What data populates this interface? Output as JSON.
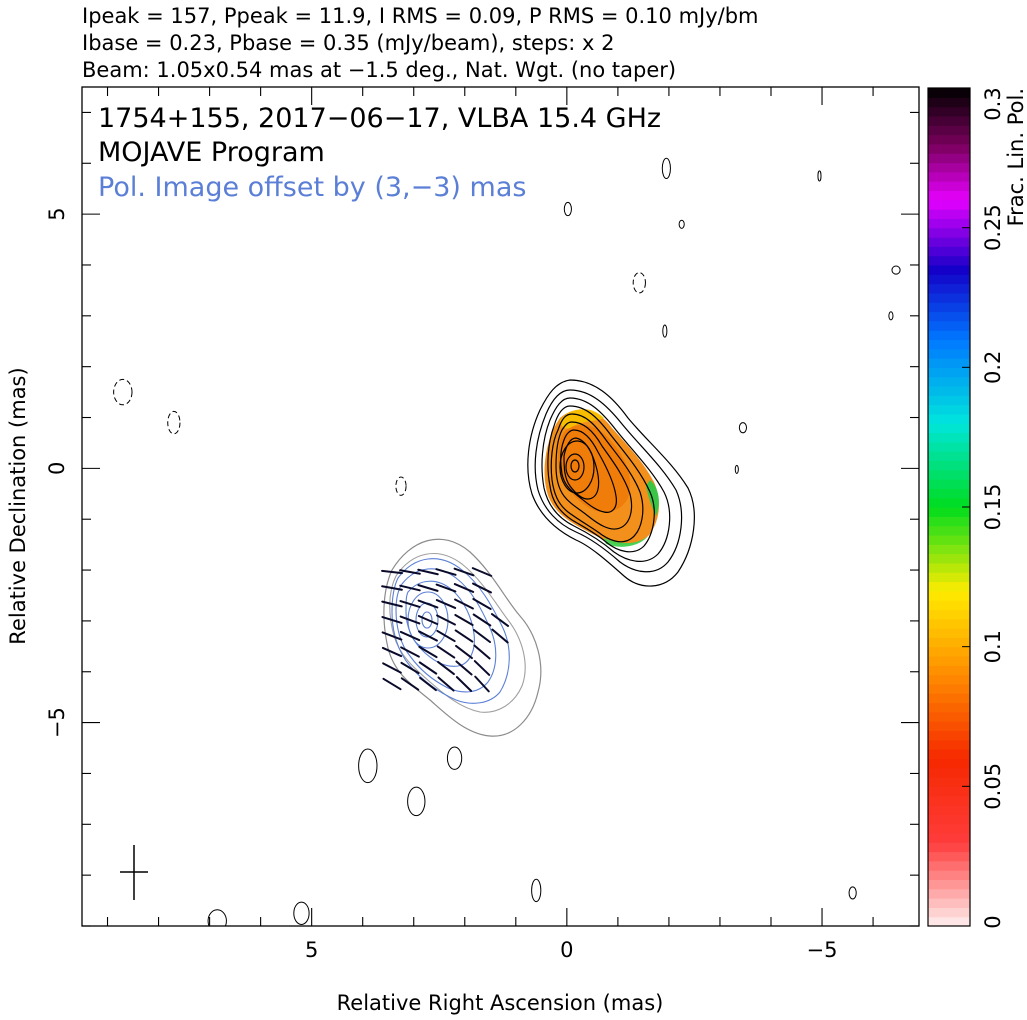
{
  "chart_data": {
    "type": "contour",
    "header_lines": [
      "Ipeak = 157, Ppeak = 11.9, I RMS = 0.09, P RMS = 0.10 mJy/bm",
      "Ibase = 0.23, Pbase = 0.35 (mJy/beam), steps: x 2",
      "Beam: 1.05x0.54 mas at −1.5 deg., Nat. Wgt. (no taper)"
    ],
    "inset_lines": [
      "1754+155, 2017−06−17, VLBA 15.4 GHz",
      "MOJAVE Program",
      "Pol. Image offset by (3,−3) mas"
    ],
    "inset_offset_color": "#5b7fd6",
    "xlabel": "Relative Right Ascension (mas)",
    "ylabel": "Relative Declination (mas)",
    "xlim": [
      9.5,
      -6.9
    ],
    "ylim": [
      -9.0,
      7.5
    ],
    "x_ticks": [
      {
        "v": 5,
        "label": "5"
      },
      {
        "v": 0,
        "label": "0"
      },
      {
        "v": -5,
        "label": "−5"
      }
    ],
    "y_ticks": [
      {
        "v": 5,
        "label": "5"
      },
      {
        "v": 0,
        "label": "0"
      },
      {
        "v": -5,
        "label": "−5"
      }
    ],
    "colorbar": {
      "label": "Frac. Lin. Pol.",
      "range": [
        0,
        0.3
      ],
      "ticks": [
        {
          "v": 0,
          "label": "0"
        },
        {
          "v": 0.05,
          "label": "0.05"
        },
        {
          "v": 0.1,
          "label": "0.1"
        },
        {
          "v": 0.15,
          "label": "0.15"
        },
        {
          "v": 0.2,
          "label": "0.2"
        },
        {
          "v": 0.25,
          "label": "0.25"
        },
        {
          "v": 0.3,
          "label": "0.3"
        }
      ]
    },
    "stokes_i_core": {
      "center": [
        0.0,
        0.0
      ],
      "contour_levels_mJy": [
        0.23,
        0.46,
        0.92,
        1.84,
        3.68,
        7.36,
        14.72,
        29.44,
        58.88,
        117.76
      ]
    },
    "beam": {
      "major_mas": 1.05,
      "minor_mas": 0.54,
      "pa_deg": -1.5,
      "center": [
        8.55,
        -7.9
      ]
    },
    "pol_offset_mas": [
      3,
      -3
    ],
    "frac_pol_samples": [
      {
        "x": 0.0,
        "y": 0.0,
        "v": 0.07
      },
      {
        "x": -0.6,
        "y": -0.5,
        "v": 0.08
      },
      {
        "x": -1.5,
        "y": -0.6,
        "v": 0.16
      },
      {
        "x": -1.0,
        "y": -1.4,
        "v": 0.14
      },
      {
        "x": 0.0,
        "y": 1.0,
        "v": 0.11
      }
    ],
    "noise_blobs": [
      {
        "x": 8.7,
        "y": 1.5,
        "rx": 0.18,
        "ry": 0.25,
        "dashed": true
      },
      {
        "x": 7.7,
        "y": 0.9,
        "rx": 0.12,
        "ry": 0.22,
        "dashed": true
      },
      {
        "x": 3.25,
        "y": -0.35,
        "rx": 0.1,
        "ry": 0.18,
        "dashed": true
      },
      {
        "x": -1.42,
        "y": 3.65,
        "rx": 0.12,
        "ry": 0.2,
        "dashed": true
      },
      {
        "x": -1.95,
        "y": 5.9,
        "rx": 0.08,
        "ry": 0.2,
        "dashed": false
      },
      {
        "x": -0.02,
        "y": 5.1,
        "rx": 0.07,
        "ry": 0.13,
        "dashed": false
      },
      {
        "x": -2.25,
        "y": 4.8,
        "rx": 0.05,
        "ry": 0.08,
        "dashed": false
      },
      {
        "x": -1.92,
        "y": 2.7,
        "rx": 0.04,
        "ry": 0.12,
        "dashed": false
      },
      {
        "x": -3.45,
        "y": 0.8,
        "rx": 0.07,
        "ry": 0.1,
        "dashed": false
      },
      {
        "x": -3.33,
        "y": -0.02,
        "rx": 0.03,
        "ry": 0.08,
        "dashed": false
      },
      {
        "x": -4.95,
        "y": 5.75,
        "rx": 0.03,
        "ry": 0.1,
        "dashed": false
      },
      {
        "x": -6.45,
        "y": 3.9,
        "rx": 0.08,
        "ry": 0.08,
        "dashed": false
      },
      {
        "x": -6.35,
        "y": 3.0,
        "rx": 0.04,
        "ry": 0.08,
        "dashed": false
      },
      {
        "x": 3.9,
        "y": -5.85,
        "rx": 0.18,
        "ry": 0.33,
        "dashed": false
      },
      {
        "x": 2.2,
        "y": -5.7,
        "rx": 0.14,
        "ry": 0.22,
        "dashed": false
      },
      {
        "x": 2.95,
        "y": -6.55,
        "rx": 0.17,
        "ry": 0.28,
        "dashed": false
      },
      {
        "x": 0.6,
        "y": -8.3,
        "rx": 0.09,
        "ry": 0.22,
        "dashed": false
      },
      {
        "x": -5.6,
        "y": -8.35,
        "rx": 0.07,
        "ry": 0.12,
        "dashed": false
      },
      {
        "x": 6.85,
        "y": -8.9,
        "rx": 0.18,
        "ry": 0.22,
        "dashed": false
      },
      {
        "x": 5.2,
        "y": -8.75,
        "rx": 0.15,
        "ry": 0.22,
        "dashed": false
      }
    ]
  }
}
